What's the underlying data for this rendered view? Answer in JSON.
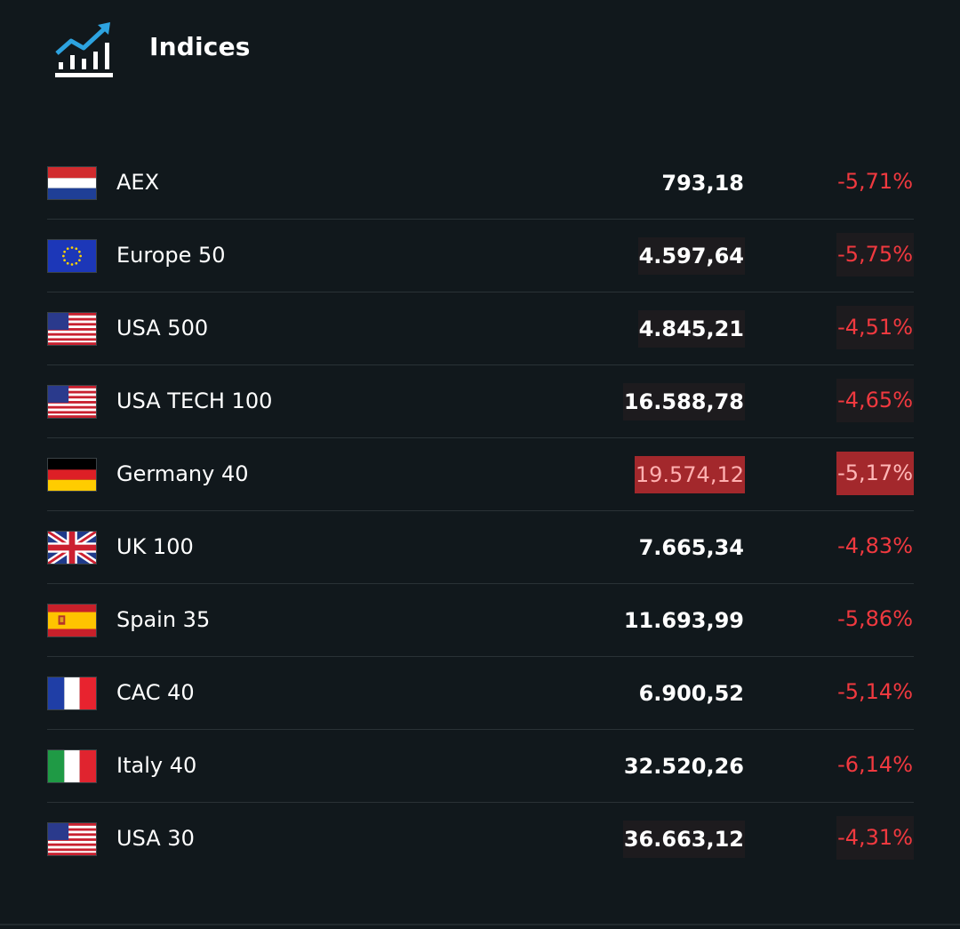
{
  "header": {
    "title": "Indices",
    "icon": "chart-trend-up-icon"
  },
  "colors": {
    "background": "#11181c",
    "negative": "#f0393f",
    "icon_accent": "#2da3e0",
    "highlight_strong": "#a3282c"
  },
  "indices": [
    {
      "name": "AEX",
      "flag": "netherlands-flag-icon",
      "price": "793,18",
      "change": "-5,71%"
    },
    {
      "name": "Europe 50",
      "flag": "eu-flag-icon",
      "price": "4.597,64",
      "change": "-5,75%"
    },
    {
      "name": "USA 500",
      "flag": "usa-flag-icon",
      "price": "4.845,21",
      "change": "-4,51%"
    },
    {
      "name": "USA TECH 100",
      "flag": "usa-flag-icon",
      "price": "16.588,78",
      "change": "-4,65%"
    },
    {
      "name": "Germany 40",
      "flag": "germany-flag-icon",
      "price": "19.574,12",
      "change": "-5,17%"
    },
    {
      "name": "UK 100",
      "flag": "uk-flag-icon",
      "price": "7.665,34",
      "change": "-4,83%"
    },
    {
      "name": "Spain 35",
      "flag": "spain-flag-icon",
      "price": "11.693,99",
      "change": "-5,86%"
    },
    {
      "name": "CAC 40",
      "flag": "france-flag-icon",
      "price": "6.900,52",
      "change": "-5,14%"
    },
    {
      "name": "Italy 40",
      "flag": "italy-flag-icon",
      "price": "32.520,26",
      "change": "-6,14%"
    },
    {
      "name": "USA 30",
      "flag": "usa-flag-icon",
      "price": "36.663,12",
      "change": "-4,31%"
    }
  ]
}
